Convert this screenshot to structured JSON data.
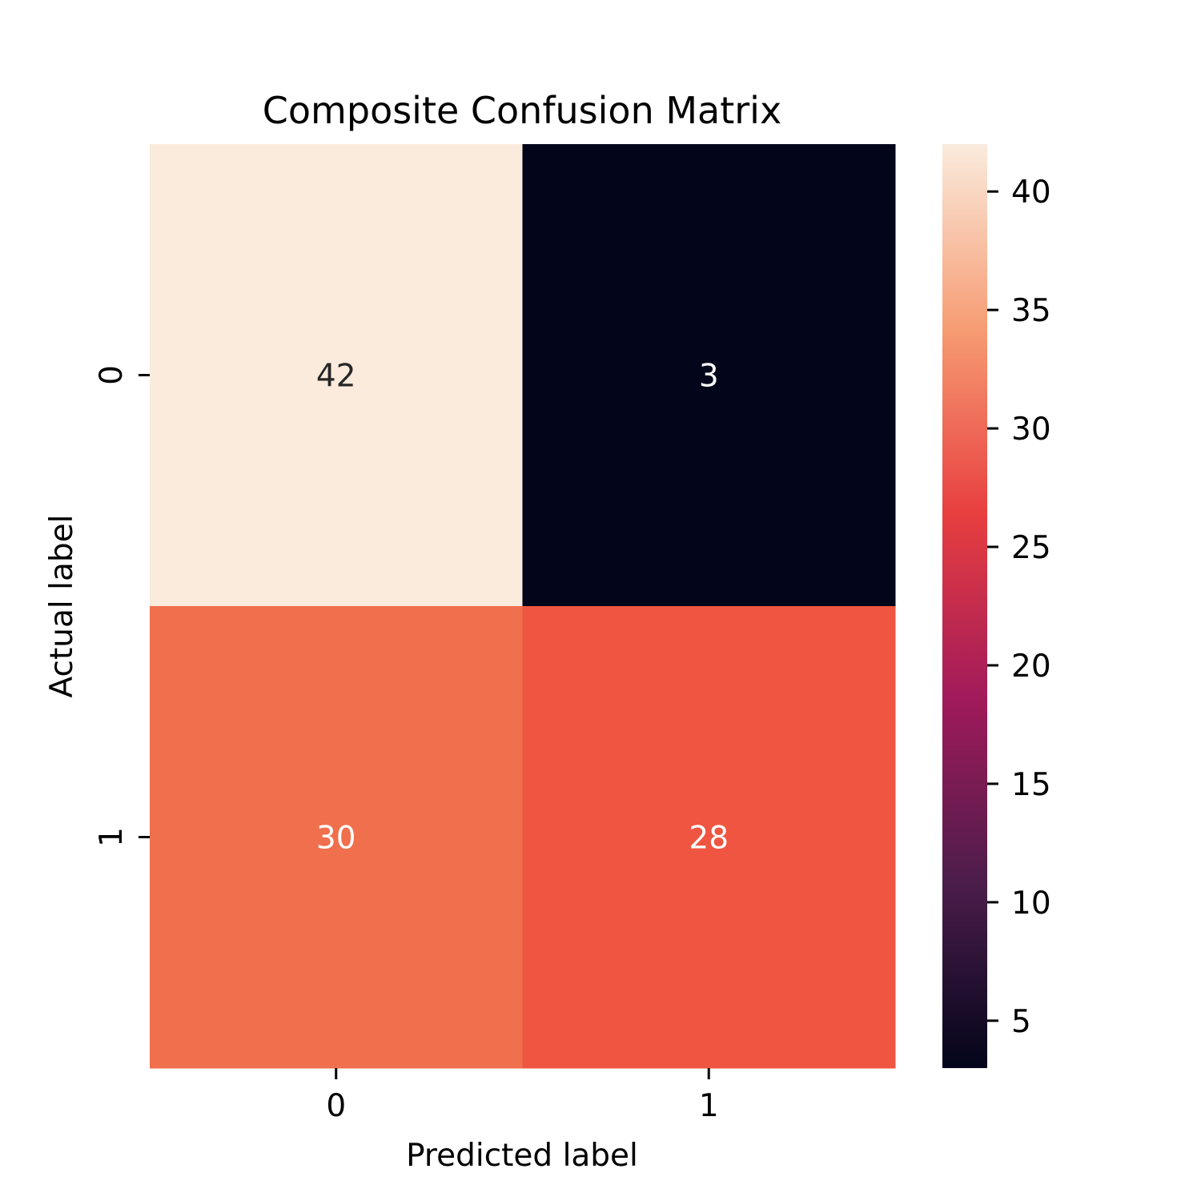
{
  "chart_data": {
    "type": "heatmap",
    "title": "Composite Confusion Matrix",
    "xlabel": "Predicted label",
    "ylabel": "Actual label",
    "x_categories": [
      "0",
      "1"
    ],
    "y_categories": [
      "0",
      "1"
    ],
    "values": [
      [
        42,
        3
      ],
      [
        30,
        28
      ]
    ],
    "colormap": "rocket",
    "colorbar": {
      "range": [
        3,
        42
      ],
      "ticks": [
        5,
        10,
        15,
        20,
        25,
        30,
        35,
        40
      ],
      "colors": [
        "#03051a",
        "#4c1d4b",
        "#a11a5b",
        "#e83f3f",
        "#f69c73",
        "#faebdd"
      ]
    },
    "cell_colors": [
      [
        "#faebdd",
        "#03051a"
      ],
      [
        "#f06f4d",
        "#ef5540"
      ]
    ],
    "cell_text_colors": [
      [
        "#262626",
        "#ffffff"
      ],
      [
        "#ffffff",
        "#ffffff"
      ]
    ]
  }
}
